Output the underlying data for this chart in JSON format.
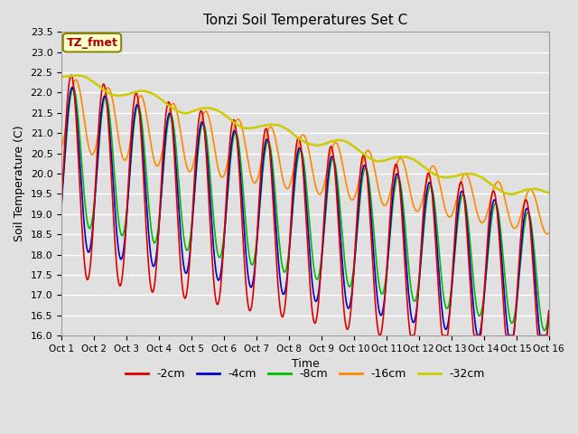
{
  "title": "Tonzi Soil Temperatures Set C",
  "xlabel": "Time",
  "ylabel": "Soil Temperature (C)",
  "ylim": [
    16.0,
    23.5
  ],
  "yticks": [
    16.0,
    16.5,
    17.0,
    17.5,
    18.0,
    18.5,
    19.0,
    19.5,
    20.0,
    20.5,
    21.0,
    21.5,
    22.0,
    22.5,
    23.0,
    23.5
  ],
  "xtick_labels": [
    "Oct 1",
    "Oct 2",
    "Oct 3",
    "Oct 4",
    "Oct 5",
    "Oct 6",
    "Oct 7",
    "Oct 8",
    "Oct 9",
    "Oct 10",
    "Oct 11",
    "Oct 12",
    "Oct 13",
    "Oct 14",
    "Oct 15",
    "Oct 16"
  ],
  "legend_labels": [
    "-2cm",
    "-4cm",
    "-8cm",
    "-16cm",
    "-32cm"
  ],
  "line_colors": [
    "#dd0000",
    "#0000cc",
    "#00bb00",
    "#ff8800",
    "#cccc00"
  ],
  "annotation_text": "TZ_fmet",
  "annotation_color": "#aa0000",
  "annotation_bg": "#ffffcc",
  "annotation_border": "#888800",
  "bg_color": "#e0e0e0",
  "n_days": 15,
  "ppd": 48
}
